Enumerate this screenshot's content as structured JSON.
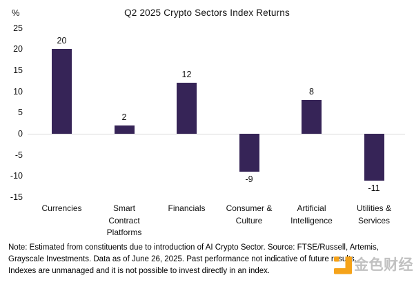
{
  "chart_data": {
    "type": "bar",
    "title": "Q2 2025 Crypto Sectors Index Returns",
    "ylabel": "%",
    "categories": [
      "Currencies",
      "Smart Contract Platforms",
      "Financials",
      "Consumer & Culture",
      "Artificial Intelligence",
      "Utilities & Services"
    ],
    "category_label_lines": [
      [
        "Currencies"
      ],
      [
        "Smart",
        "Contract",
        "Platforms"
      ],
      [
        "Financials"
      ],
      [
        "Consumer &",
        "Culture"
      ],
      [
        "Artificial",
        "Intelligence"
      ],
      [
        "Utilities &",
        "Services"
      ]
    ],
    "values": [
      20,
      2,
      12,
      -9,
      8,
      -11
    ],
    "data_labels": [
      "20",
      "2",
      "12",
      "-9",
      "8",
      "-11"
    ],
    "yticks": [
      25,
      20,
      15,
      10,
      5,
      0,
      -5,
      -10,
      -15
    ],
    "ylim": [
      -17,
      27
    ],
    "grid": "zero-line-only",
    "legend_position": "none",
    "bar_color": "#362457",
    "zero_line_color": "#d9d9d9"
  },
  "note": {
    "lines": [
      "Note: Estimated from constituents due to introduction of AI Crypto Sector. Source: FTSE/Russell, Artemis,",
      "Grayscale Investments. Data as of June 26, 2025. Past performance not indicative of future results.",
      "Indexes are unmanaged and it is not possible to invest directly in an index."
    ]
  },
  "watermark": {
    "text": "金色财经",
    "icon": "jinse-logo-icon",
    "icon_color": "#F5A31A"
  }
}
